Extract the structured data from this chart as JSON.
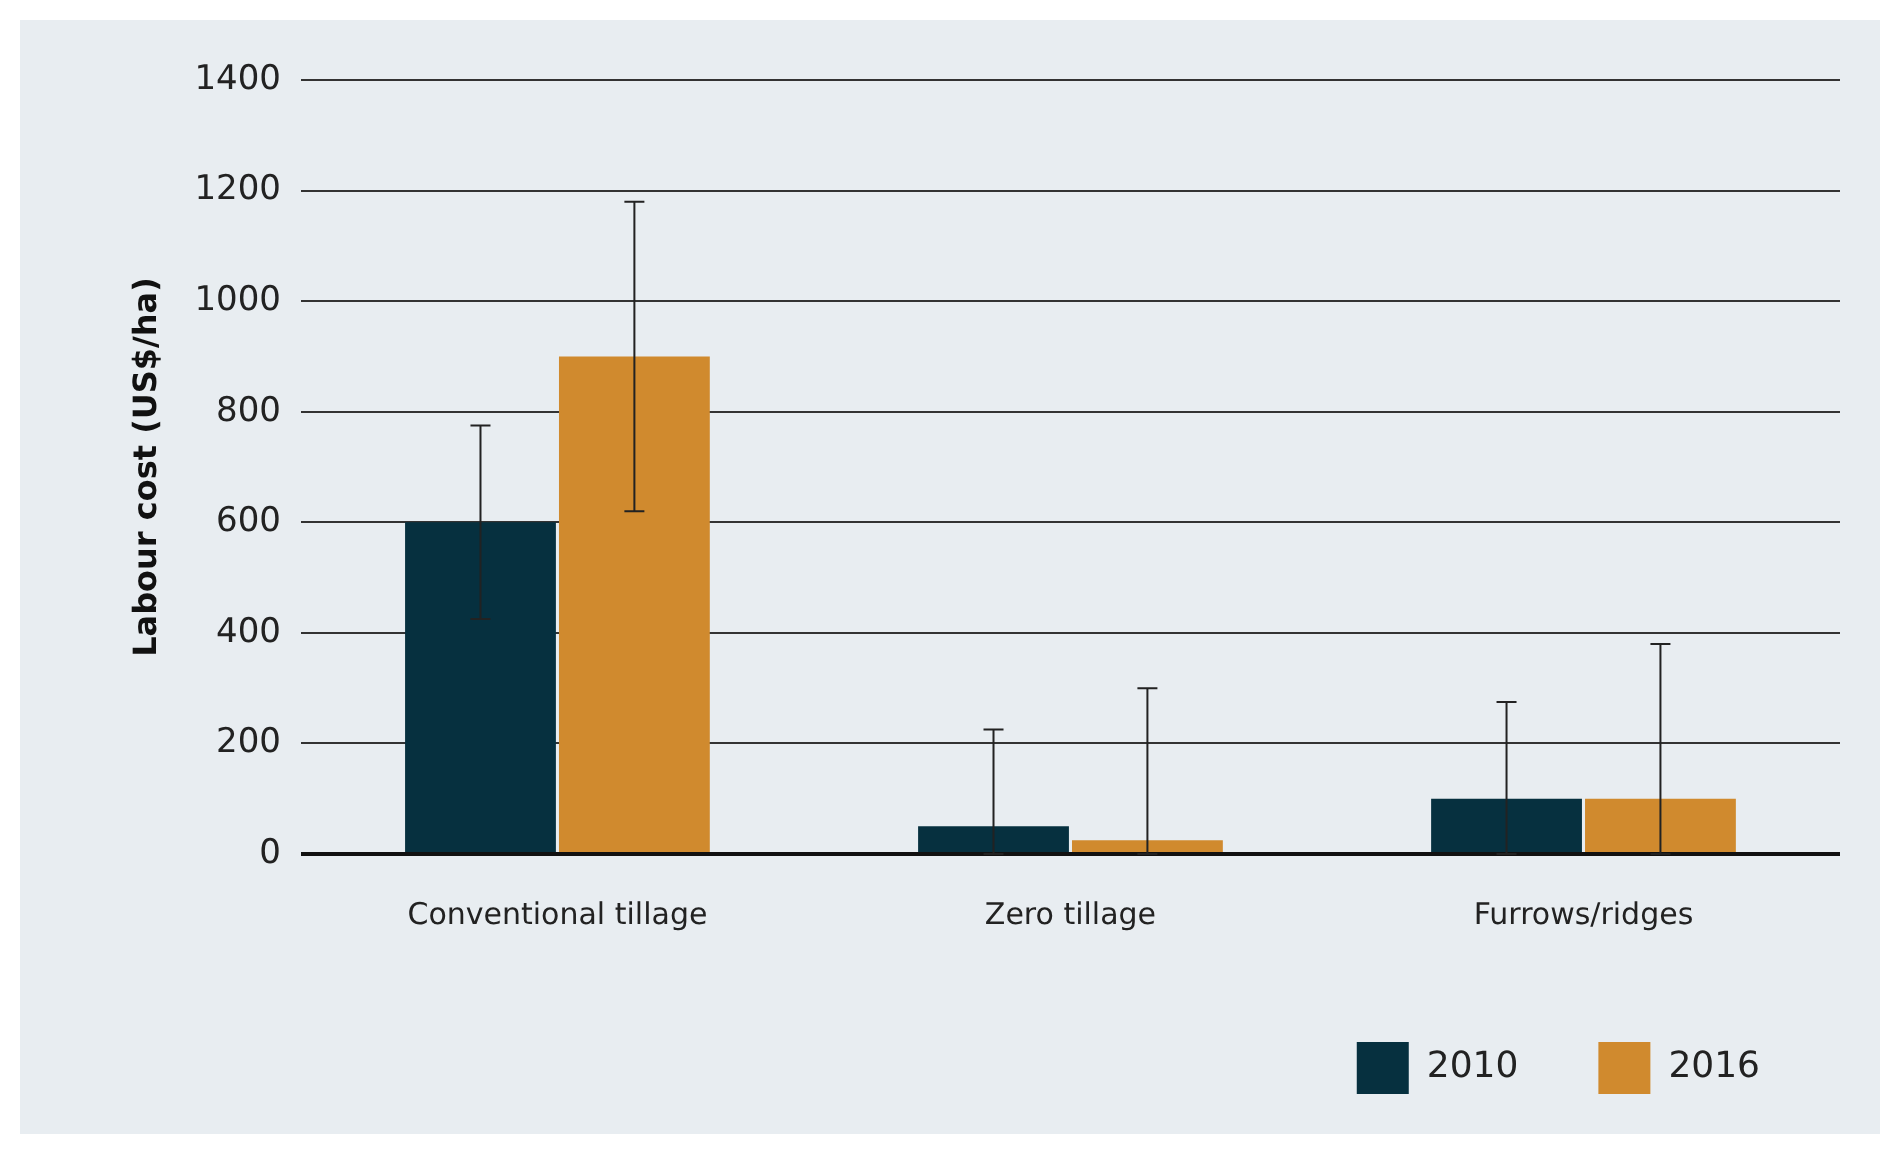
{
  "chart_data": {
    "type": "bar",
    "ylabel": "Labour cost (US$/ha)",
    "categories": [
      "Conventional tillage",
      "Zero tillage",
      "Furrows/ridges"
    ],
    "series": [
      {
        "name": "2010",
        "color": "#06303f",
        "values": [
          600,
          50,
          100
        ],
        "errors": [
          [
            425,
            775
          ],
          [
            0,
            225
          ],
          [
            0,
            275
          ]
        ]
      },
      {
        "name": "2016",
        "color": "#d08a2e",
        "values": [
          900,
          25,
          100
        ],
        "errors": [
          [
            620,
            1180
          ],
          [
            0,
            300
          ],
          [
            0,
            380
          ]
        ]
      }
    ],
    "ylim": [
      0,
      1400
    ],
    "yticks": [
      0,
      200,
      400,
      600,
      800,
      1000,
      1200,
      1400
    ],
    "grid": "y",
    "legend": "bottom right"
  }
}
